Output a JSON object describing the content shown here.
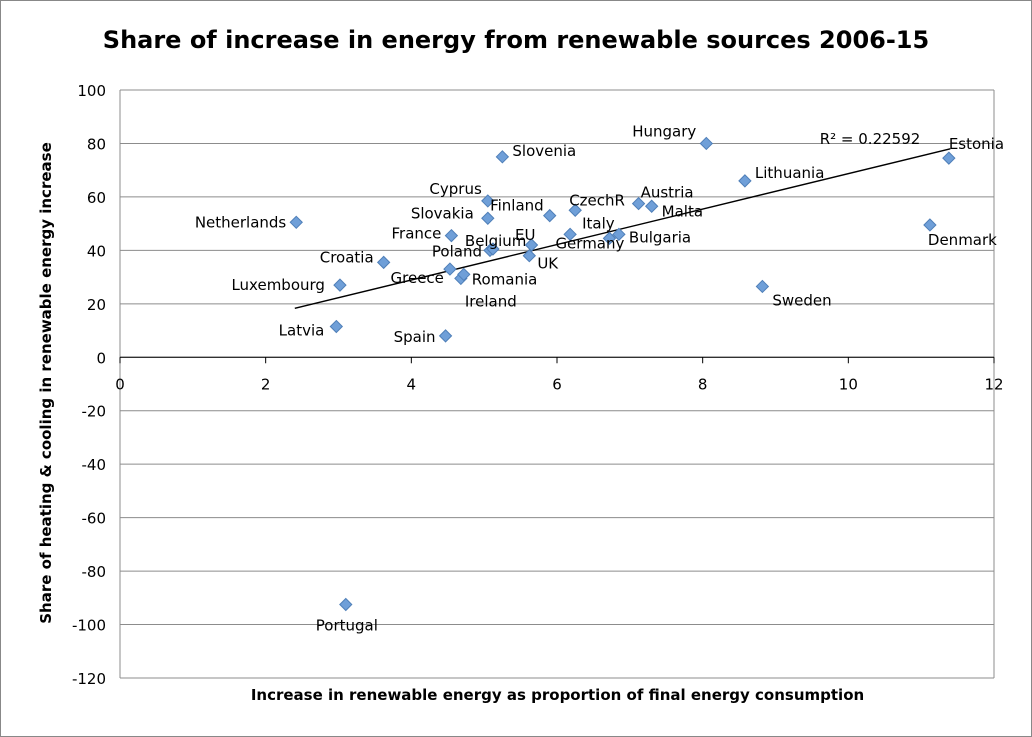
{
  "chart_data": {
    "type": "scatter",
    "title": "Share of increase in energy from renewable sources 2006-15",
    "xlabel": "Increase in renewable energy as proportion of final energy consumption",
    "ylabel": "Share of heating & cooling in renewable energy increase",
    "xlim": [
      0,
      12
    ],
    "ylim": [
      -120,
      100
    ],
    "x_ticks": [
      "0",
      "2",
      "4",
      "6",
      "8",
      "10",
      "12"
    ],
    "y_ticks": [
      "100",
      "80",
      "60",
      "40",
      "20",
      "0",
      "-20",
      "-40",
      "-60",
      "-80",
      "-100",
      "-120"
    ],
    "grid": "horizontal",
    "marker_color": "#6f9fd8",
    "marker_edge": "#4f7fb8",
    "trendline": {
      "label": "R² = 0.22592",
      "x": [
        2.4,
        11.4
      ],
      "y": [
        18.3,
        78
      ]
    },
    "points": [
      {
        "label": "Netherlands",
        "x": 2.42,
        "y": 50.5
      },
      {
        "label": "Luxembourg",
        "x": 3.02,
        "y": 27
      },
      {
        "label": "Latvia",
        "x": 2.97,
        "y": 11.5
      },
      {
        "label": "Croatia",
        "x": 3.62,
        "y": 35.5
      },
      {
        "label": "Portugal",
        "x": 3.1,
        "y": -92.5
      },
      {
        "label": "Spain",
        "x": 4.47,
        "y": 8
      },
      {
        "label": "France",
        "x": 4.55,
        "y": 45.5
      },
      {
        "label": "Greece",
        "x": 4.53,
        "y": 33
      },
      {
        "label": "Ireland",
        "x": 4.68,
        "y": 29.5
      },
      {
        "label": "Romania",
        "x": 4.72,
        "y": 31
      },
      {
        "label": "Poland",
        "x": 5.08,
        "y": 40
      },
      {
        "label": "Belgium",
        "x": 5.12,
        "y": 40.5
      },
      {
        "label": "Slovakia",
        "x": 5.05,
        "y": 52
      },
      {
        "label": "Cyprus",
        "x": 5.05,
        "y": 58.5
      },
      {
        "label": "Slovenia",
        "x": 5.25,
        "y": 75
      },
      {
        "label": "EU",
        "x": 5.65,
        "y": 42
      },
      {
        "label": "UK",
        "x": 5.62,
        "y": 38
      },
      {
        "label": "Finland",
        "x": 5.9,
        "y": 53
      },
      {
        "label": "Italy",
        "x": 6.18,
        "y": 46
      },
      {
        "label": "CzechR",
        "x": 6.25,
        "y": 55
      },
      {
        "label": "Germany",
        "x": 6.72,
        "y": 44.5
      },
      {
        "label": "Bulgaria",
        "x": 6.85,
        "y": 46
      },
      {
        "label": "Austria",
        "x": 7.12,
        "y": 57.5
      },
      {
        "label": "Malta",
        "x": 7.3,
        "y": 56.5
      },
      {
        "label": "Hungary",
        "x": 8.05,
        "y": 80
      },
      {
        "label": "Lithuania",
        "x": 8.58,
        "y": 66
      },
      {
        "label": "Sweden",
        "x": 8.82,
        "y": 26.5
      },
      {
        "label": "Denmark",
        "x": 11.12,
        "y": 49.5
      },
      {
        "label": "Estonia",
        "x": 11.38,
        "y": 74.5
      }
    ]
  }
}
